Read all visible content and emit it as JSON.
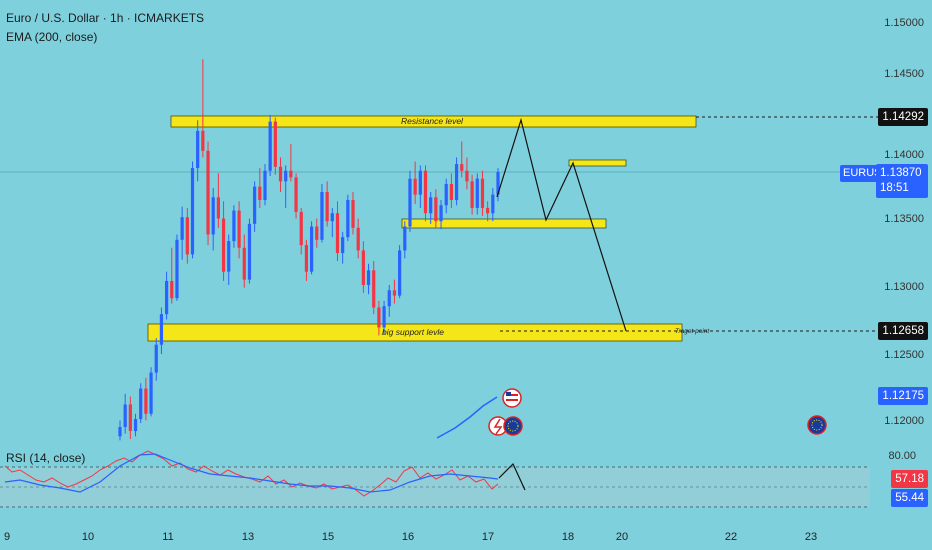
{
  "header": {
    "title": "Euro / U.S. Dollar · 1h · ICMARKETS",
    "indicator": "EMA (200, close)"
  },
  "rsi": {
    "label": "RSI (14, close)",
    "level_80": "80.00",
    "value_1": "57.18",
    "value_2": "55.44",
    "color_1": "#f23645",
    "color_2": "#2962ff"
  },
  "price_axis": {
    "ticks": [
      "1.15000",
      "1.14500",
      "1.14000",
      "1.13500",
      "1.13000",
      "1.12500",
      "1.12000"
    ],
    "tags": {
      "resistance": "1.14292",
      "symbol": "EURUSD",
      "current": "1.13870",
      "countdown": "18:51",
      "support": "1.12658",
      "ema": "1.12175"
    }
  },
  "time_axis": [
    "9",
    "10",
    "11",
    "13",
    "15",
    "16",
    "17",
    "18",
    "20",
    "22",
    "23"
  ],
  "annotations": {
    "resistance": "Resistance level",
    "support": "big support levle",
    "target": "Traget point"
  },
  "colors": {
    "background": "#7fd0dd",
    "zone": "#f5e61a",
    "up_candle": "#2962ff",
    "down_candle": "#f23645",
    "ema": "#2962ff"
  },
  "chart_data": {
    "type": "candlestick",
    "title": "Euro / U.S. Dollar · 1h · ICMARKETS",
    "symbol": "EURUSD",
    "y_axis": "price",
    "ylim": [
      1.1185,
      1.1512
    ],
    "levels": {
      "resistance": 1.14292,
      "current": 1.1387,
      "support": 1.12658,
      "ema_200": 1.12175
    },
    "zones": [
      {
        "label": "Resistance level",
        "low": 1.1422,
        "high": 1.1433
      },
      {
        "label": "",
        "low": 1.1346,
        "high": 1.1353
      },
      {
        "label": "",
        "low": 1.1389,
        "high": 1.1395
      },
      {
        "label": "big support levle",
        "low": 1.126,
        "high": 1.1275
      }
    ],
    "rsi": {
      "period": 14,
      "last": 57.18,
      "signal": 55.44,
      "upper_band": 80
    },
    "ohlc": [
      [
        1.1188,
        1.12,
        1.1185,
        1.1195
      ],
      [
        1.1195,
        1.122,
        1.119,
        1.1212
      ],
      [
        1.1212,
        1.1218,
        1.1186,
        1.1192
      ],
      [
        1.1192,
        1.1205,
        1.1188,
        1.1201
      ],
      [
        1.1201,
        1.1228,
        1.1198,
        1.1224
      ],
      [
        1.1224,
        1.1232,
        1.12,
        1.1205
      ],
      [
        1.1205,
        1.124,
        1.1203,
        1.1236
      ],
      [
        1.1236,
        1.1262,
        1.123,
        1.1257
      ],
      [
        1.1257,
        1.1285,
        1.125,
        1.128
      ],
      [
        1.128,
        1.1312,
        1.1276,
        1.1305
      ],
      [
        1.1305,
        1.133,
        1.1288,
        1.1292
      ],
      [
        1.1292,
        1.134,
        1.129,
        1.1336
      ],
      [
        1.1336,
        1.1361,
        1.1321,
        1.1353
      ],
      [
        1.1353,
        1.136,
        1.1318,
        1.1325
      ],
      [
        1.1325,
        1.1395,
        1.1322,
        1.139
      ],
      [
        1.139,
        1.1426,
        1.138,
        1.1418
      ],
      [
        1.1418,
        1.1472,
        1.1398,
        1.1403
      ],
      [
        1.1403,
        1.141,
        1.1332,
        1.134
      ],
      [
        1.134,
        1.1375,
        1.1328,
        1.1368
      ],
      [
        1.1368,
        1.1386,
        1.1345,
        1.1352
      ],
      [
        1.1352,
        1.1365,
        1.1305,
        1.1312
      ],
      [
        1.1312,
        1.134,
        1.1302,
        1.1335
      ],
      [
        1.1335,
        1.1362,
        1.133,
        1.1358
      ],
      [
        1.1358,
        1.1365,
        1.1322,
        1.133
      ],
      [
        1.133,
        1.134,
        1.13,
        1.1306
      ],
      [
        1.1306,
        1.1352,
        1.1303,
        1.1348
      ],
      [
        1.1348,
        1.138,
        1.1342,
        1.1376
      ],
      [
        1.1376,
        1.139,
        1.136,
        1.1366
      ],
      [
        1.1366,
        1.1393,
        1.1362,
        1.1388
      ],
      [
        1.1388,
        1.143,
        1.1384,
        1.1425
      ],
      [
        1.1425,
        1.1428,
        1.1385,
        1.1391
      ],
      [
        1.1391,
        1.1398,
        1.1372,
        1.138
      ],
      [
        1.138,
        1.1392,
        1.136,
        1.1388
      ],
      [
        1.1388,
        1.1408,
        1.138,
        1.1383
      ],
      [
        1.1383,
        1.1386,
        1.1352,
        1.1357
      ],
      [
        1.1357,
        1.136,
        1.1325,
        1.1332
      ],
      [
        1.1332,
        1.1336,
        1.1305,
        1.1312
      ],
      [
        1.1312,
        1.135,
        1.131,
        1.1346
      ],
      [
        1.1346,
        1.1352,
        1.133,
        1.1336
      ],
      [
        1.1336,
        1.1378,
        1.1334,
        1.1372
      ],
      [
        1.1372,
        1.138,
        1.1346,
        1.135
      ],
      [
        1.135,
        1.136,
        1.1338,
        1.1356
      ],
      [
        1.1356,
        1.1365,
        1.132,
        1.1326
      ],
      [
        1.1326,
        1.1342,
        1.1318,
        1.1338
      ],
      [
        1.1338,
        1.137,
        1.1335,
        1.1366
      ],
      [
        1.1366,
        1.1372,
        1.134,
        1.1345
      ],
      [
        1.1345,
        1.1352,
        1.1322,
        1.1328
      ],
      [
        1.1328,
        1.1335,
        1.1296,
        1.1302
      ],
      [
        1.1302,
        1.1318,
        1.1295,
        1.1313
      ],
      [
        1.1313,
        1.132,
        1.128,
        1.1285
      ],
      [
        1.1285,
        1.129,
        1.1264,
        1.127
      ],
      [
        1.127,
        1.129,
        1.1265,
        1.1286
      ],
      [
        1.1286,
        1.1302,
        1.1278,
        1.1298
      ],
      [
        1.1298,
        1.1306,
        1.1288,
        1.1294
      ],
      [
        1.1294,
        1.1332,
        1.1292,
        1.1328
      ],
      [
        1.1328,
        1.135,
        1.1322,
        1.1346
      ],
      [
        1.1346,
        1.1388,
        1.1342,
        1.1382
      ],
      [
        1.1382,
        1.1395,
        1.1363,
        1.137
      ],
      [
        1.137,
        1.1392,
        1.136,
        1.1388
      ],
      [
        1.1388,
        1.1392,
        1.135,
        1.1356
      ],
      [
        1.1356,
        1.1372,
        1.1348,
        1.1368
      ],
      [
        1.1368,
        1.1374,
        1.1345,
        1.135
      ],
      [
        1.135,
        1.1366,
        1.1344,
        1.1362
      ],
      [
        1.1362,
        1.1382,
        1.1356,
        1.1378
      ],
      [
        1.1378,
        1.1386,
        1.136,
        1.1366
      ],
      [
        1.1366,
        1.1398,
        1.1362,
        1.1393
      ],
      [
        1.1393,
        1.141,
        1.1383,
        1.1388
      ],
      [
        1.1388,
        1.1398,
        1.1374,
        1.138
      ],
      [
        1.138,
        1.1385,
        1.1355,
        1.136
      ],
      [
        1.136,
        1.1386,
        1.1355,
        1.1382
      ],
      [
        1.1382,
        1.1388,
        1.1354,
        1.136
      ],
      [
        1.136,
        1.1365,
        1.135,
        1.1356
      ],
      [
        1.1356,
        1.1375,
        1.135,
        1.137
      ],
      [
        1.137,
        1.139,
        1.1365,
        1.1387
      ]
    ]
  }
}
